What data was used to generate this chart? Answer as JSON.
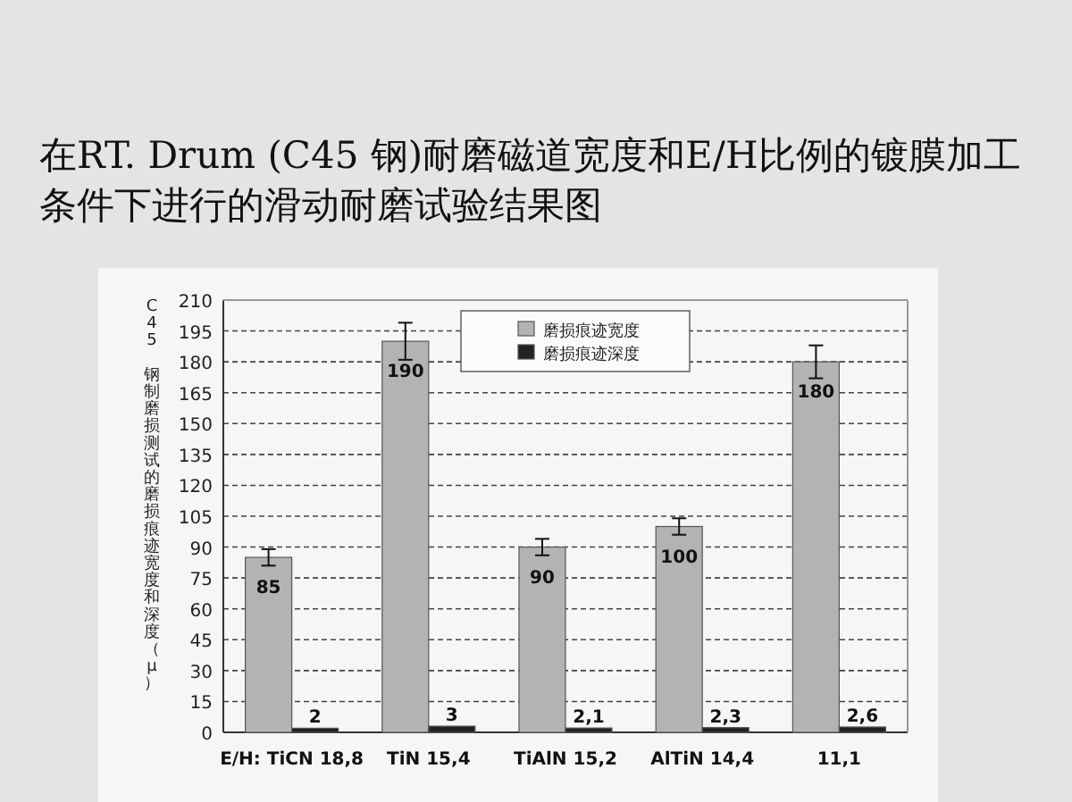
{
  "chart_data": {
    "type": "bar",
    "title": "在RT. Drum (C45 钢)耐磨磁道宽度和E/H比例的镀膜加工条件下进行的滑动耐磨试验结果图",
    "ylabel": "C45 钢制磨损测试的磨损痕迹宽度和深度（μ）",
    "categories": [
      "E/H: TiCN 18,8",
      "TiN 15,4",
      "TiAlN 15,2",
      "AlTiN 14,4",
      "11,1"
    ],
    "series": [
      {
        "name": "磨损痕迹宽度",
        "color": "#b3b3b3",
        "values": [
          85,
          190,
          90,
          100,
          180
        ],
        "errors": [
          4,
          9,
          4,
          4,
          8
        ],
        "value_labels": [
          "85",
          "190",
          "90",
          "100",
          "180"
        ]
      },
      {
        "name": "磨损痕迹深度",
        "color": "#222222",
        "values": [
          2,
          3,
          2.1,
          2.3,
          2.6
        ],
        "value_labels": [
          "2",
          "3",
          "2,1",
          "2,3",
          "2,6"
        ]
      }
    ],
    "ylim": [
      0,
      210
    ],
    "yticks": [
      0,
      15,
      30,
      45,
      60,
      75,
      90,
      105,
      120,
      135,
      150,
      165,
      180,
      195,
      210
    ],
    "grid": "y",
    "legend": "top"
  }
}
